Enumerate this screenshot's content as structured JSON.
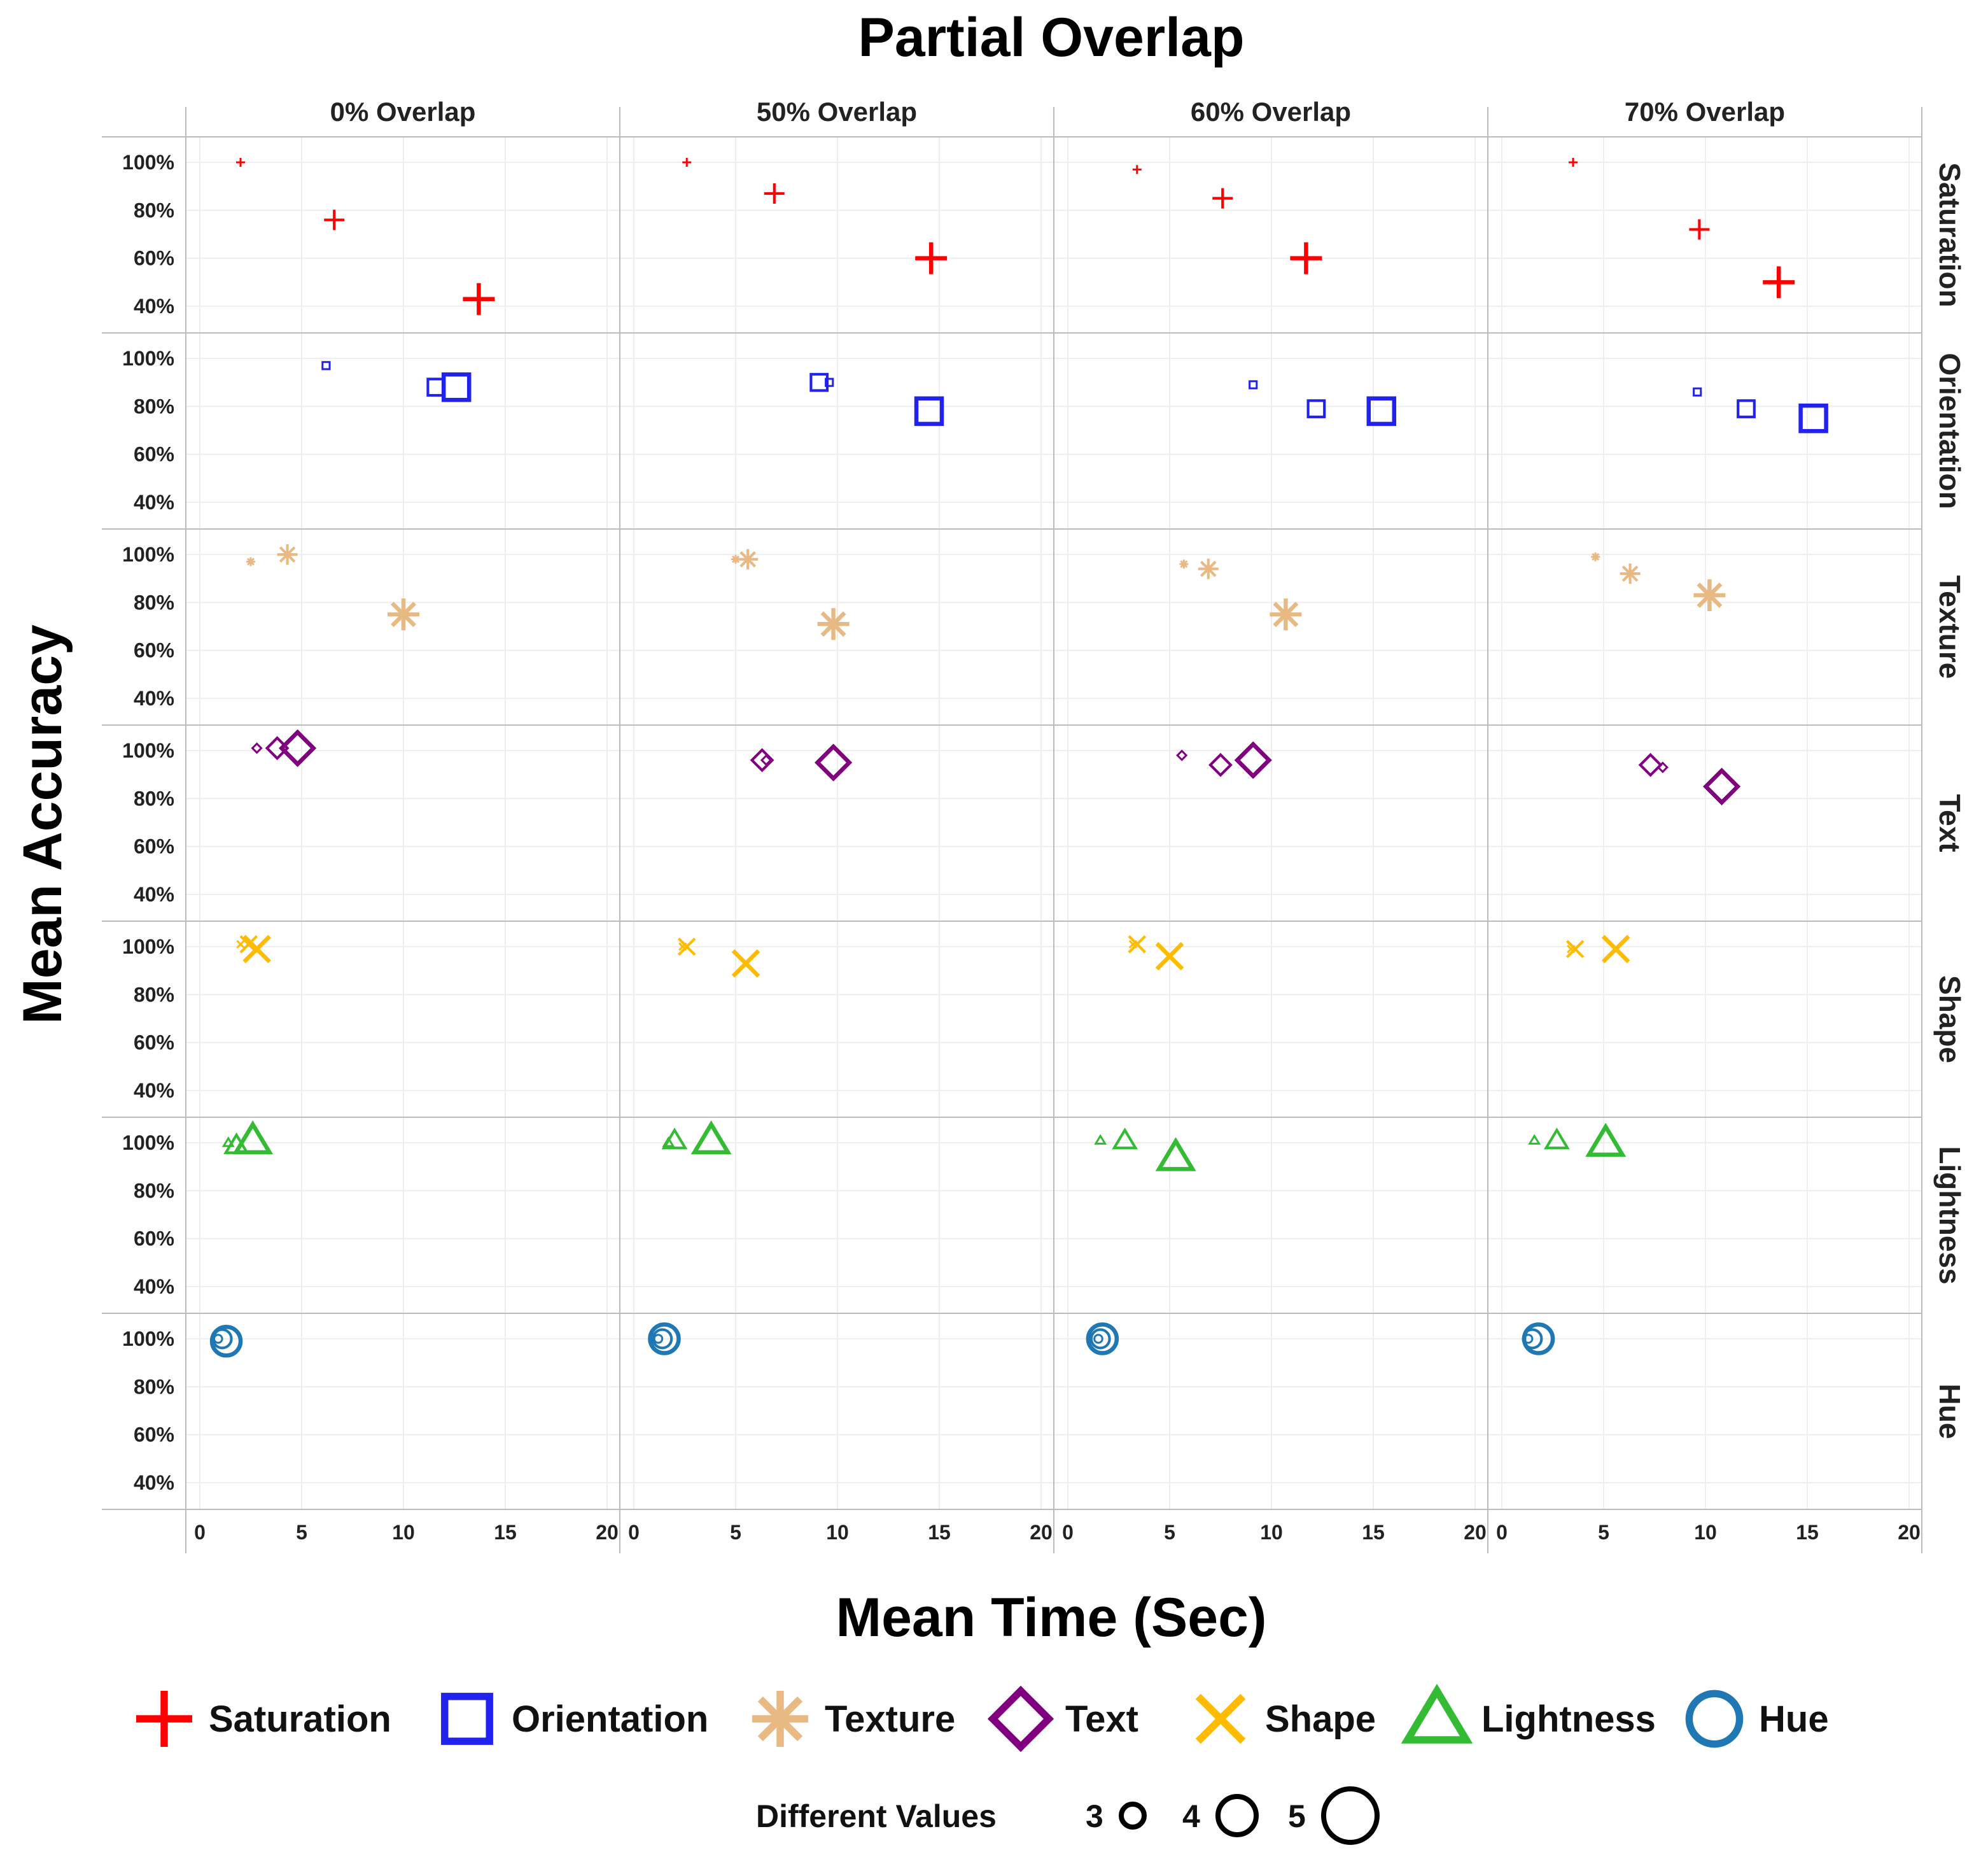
{
  "chart_data": {
    "type": "scatter",
    "title": "Partial Overlap",
    "xlabel": "Mean Time (Sec)",
    "ylabel": "Mean Accuracy",
    "xlim": [
      0,
      20
    ],
    "ylim": [
      30,
      110
    ],
    "xticks": [
      0,
      5,
      10,
      15,
      20
    ],
    "yticks": [
      100,
      80,
      60,
      40
    ],
    "ytick_labels": [
      "100%",
      "80%",
      "60%",
      "40%"
    ],
    "grid": true,
    "columns": [
      "0% Overlap",
      "50% Overlap",
      "60% Overlap",
      "70% Overlap"
    ],
    "rows": [
      "Saturation",
      "Orientation",
      "Texture",
      "Text",
      "Shape",
      "Lightness",
      "Hue"
    ],
    "colors": {
      "Saturation": "#ff0000",
      "Orientation": "#2222ee",
      "Texture": "#e8b982",
      "Text": "#800080",
      "Shape": "#ffbb00",
      "Lightness": "#33bb33",
      "Hue": "#1f77b4"
    },
    "markers": {
      "Saturation": "plus",
      "Orientation": "square",
      "Texture": "asterisk",
      "Text": "diamond",
      "Shape": "x",
      "Lightness": "triangle",
      "Hue": "circle"
    },
    "points": [
      {
        "row": "Saturation",
        "col": "0% Overlap",
        "values": [
          {
            "n": 3,
            "time": 2.0,
            "acc": 100
          },
          {
            "n": 4,
            "time": 6.6,
            "acc": 76
          },
          {
            "n": 5,
            "time": 13.7,
            "acc": 43
          }
        ]
      },
      {
        "row": "Saturation",
        "col": "50% Overlap",
        "values": [
          {
            "n": 3,
            "time": 2.6,
            "acc": 100
          },
          {
            "n": 4,
            "time": 6.9,
            "acc": 87
          },
          {
            "n": 5,
            "time": 14.6,
            "acc": 60
          }
        ]
      },
      {
        "row": "Saturation",
        "col": "60% Overlap",
        "values": [
          {
            "n": 3,
            "time": 3.4,
            "acc": 97
          },
          {
            "n": 4,
            "time": 7.6,
            "acc": 85
          },
          {
            "n": 5,
            "time": 11.7,
            "acc": 60
          }
        ]
      },
      {
        "row": "Saturation",
        "col": "70% Overlap",
        "values": [
          {
            "n": 3,
            "time": 3.5,
            "acc": 100
          },
          {
            "n": 4,
            "time": 9.7,
            "acc": 72
          },
          {
            "n": 5,
            "time": 13.6,
            "acc": 50
          }
        ]
      },
      {
        "row": "Orientation",
        "col": "0% Overlap",
        "values": [
          {
            "n": 3,
            "time": 6.2,
            "acc": 97
          },
          {
            "n": 4,
            "time": 11.6,
            "acc": 88
          },
          {
            "n": 5,
            "time": 12.6,
            "acc": 88
          }
        ]
      },
      {
        "row": "Orientation",
        "col": "50% Overlap",
        "values": [
          {
            "n": 3,
            "time": 9.6,
            "acc": 90
          },
          {
            "n": 4,
            "time": 9.1,
            "acc": 90
          },
          {
            "n": 5,
            "time": 14.5,
            "acc": 78
          }
        ]
      },
      {
        "row": "Orientation",
        "col": "60% Overlap",
        "values": [
          {
            "n": 3,
            "time": 9.1,
            "acc": 89
          },
          {
            "n": 4,
            "time": 12.2,
            "acc": 79
          },
          {
            "n": 5,
            "time": 15.4,
            "acc": 78
          }
        ]
      },
      {
        "row": "Orientation",
        "col": "70% Overlap",
        "values": [
          {
            "n": 3,
            "time": 9.6,
            "acc": 86
          },
          {
            "n": 4,
            "time": 12.0,
            "acc": 79
          },
          {
            "n": 5,
            "time": 15.3,
            "acc": 75
          }
        ]
      },
      {
        "row": "Texture",
        "col": "0% Overlap",
        "values": [
          {
            "n": 3,
            "time": 2.5,
            "acc": 97
          },
          {
            "n": 4,
            "time": 4.3,
            "acc": 100
          },
          {
            "n": 5,
            "time": 10.0,
            "acc": 75
          }
        ]
      },
      {
        "row": "Texture",
        "col": "50% Overlap",
        "values": [
          {
            "n": 3,
            "time": 5.0,
            "acc": 98
          },
          {
            "n": 4,
            "time": 5.6,
            "acc": 98
          },
          {
            "n": 5,
            "time": 9.8,
            "acc": 71
          }
        ]
      },
      {
        "row": "Texture",
        "col": "60% Overlap",
        "values": [
          {
            "n": 3,
            "time": 5.7,
            "acc": 96
          },
          {
            "n": 4,
            "time": 6.9,
            "acc": 94
          },
          {
            "n": 5,
            "time": 10.7,
            "acc": 75
          }
        ]
      },
      {
        "row": "Texture",
        "col": "70% Overlap",
        "values": [
          {
            "n": 3,
            "time": 4.6,
            "acc": 99
          },
          {
            "n": 4,
            "time": 6.3,
            "acc": 92
          },
          {
            "n": 5,
            "time": 10.2,
            "acc": 83
          }
        ]
      },
      {
        "row": "Text",
        "col": "0% Overlap",
        "values": [
          {
            "n": 3,
            "time": 2.8,
            "acc": 101
          },
          {
            "n": 4,
            "time": 3.8,
            "acc": 101
          },
          {
            "n": 5,
            "time": 4.8,
            "acc": 101
          }
        ]
      },
      {
        "row": "Text",
        "col": "50% Overlap",
        "values": [
          {
            "n": 3,
            "time": 6.5,
            "acc": 96
          },
          {
            "n": 4,
            "time": 6.3,
            "acc": 96
          },
          {
            "n": 5,
            "time": 9.8,
            "acc": 95
          }
        ]
      },
      {
        "row": "Text",
        "col": "60% Overlap",
        "values": [
          {
            "n": 3,
            "time": 5.6,
            "acc": 98
          },
          {
            "n": 4,
            "time": 7.5,
            "acc": 94
          },
          {
            "n": 5,
            "time": 9.1,
            "acc": 96
          }
        ]
      },
      {
        "row": "Text",
        "col": "70% Overlap",
        "values": [
          {
            "n": 3,
            "time": 7.9,
            "acc": 93
          },
          {
            "n": 4,
            "time": 7.3,
            "acc": 94
          },
          {
            "n": 5,
            "time": 10.8,
            "acc": 85
          }
        ]
      },
      {
        "row": "Shape",
        "col": "0% Overlap",
        "values": [
          {
            "n": 3,
            "time": 2.0,
            "acc": 101
          },
          {
            "n": 4,
            "time": 2.4,
            "acc": 101
          },
          {
            "n": 5,
            "time": 2.8,
            "acc": 99
          }
        ]
      },
      {
        "row": "Shape",
        "col": "50% Overlap",
        "values": [
          {
            "n": 3,
            "time": 2.4,
            "acc": 100
          },
          {
            "n": 4,
            "time": 2.6,
            "acc": 100
          },
          {
            "n": 5,
            "time": 5.5,
            "acc": 93
          }
        ]
      },
      {
        "row": "Shape",
        "col": "60% Overlap",
        "values": [
          {
            "n": 3,
            "time": 3.2,
            "acc": 101
          },
          {
            "n": 4,
            "time": 3.4,
            "acc": 101
          },
          {
            "n": 5,
            "time": 5.0,
            "acc": 96
          }
        ]
      },
      {
        "row": "Shape",
        "col": "70% Overlap",
        "values": [
          {
            "n": 3,
            "time": 3.4,
            "acc": 99
          },
          {
            "n": 4,
            "time": 3.6,
            "acc": 99
          },
          {
            "n": 5,
            "time": 5.6,
            "acc": 99
          }
        ]
      },
      {
        "row": "Lightness",
        "col": "0% Overlap",
        "values": [
          {
            "n": 3,
            "time": 1.4,
            "acc": 100
          },
          {
            "n": 4,
            "time": 1.8,
            "acc": 99
          },
          {
            "n": 5,
            "time": 2.6,
            "acc": 101
          }
        ]
      },
      {
        "row": "Lightness",
        "col": "50% Overlap",
        "values": [
          {
            "n": 3,
            "time": 1.7,
            "acc": 100
          },
          {
            "n": 4,
            "time": 2.0,
            "acc": 101
          },
          {
            "n": 5,
            "time": 3.8,
            "acc": 101
          }
        ]
      },
      {
        "row": "Lightness",
        "col": "60% Overlap",
        "values": [
          {
            "n": 3,
            "time": 1.6,
            "acc": 101
          },
          {
            "n": 4,
            "time": 2.8,
            "acc": 101
          },
          {
            "n": 5,
            "time": 5.3,
            "acc": 94
          }
        ]
      },
      {
        "row": "Lightness",
        "col": "70% Overlap",
        "values": [
          {
            "n": 3,
            "time": 1.6,
            "acc": 101
          },
          {
            "n": 4,
            "time": 2.7,
            "acc": 101
          },
          {
            "n": 5,
            "time": 5.1,
            "acc": 100
          }
        ]
      },
      {
        "row": "Hue",
        "col": "0% Overlap",
        "values": [
          {
            "n": 3,
            "time": 0.9,
            "acc": 100
          },
          {
            "n": 4,
            "time": 1.1,
            "acc": 100
          },
          {
            "n": 5,
            "time": 1.3,
            "acc": 99
          }
        ]
      },
      {
        "row": "Hue",
        "col": "50% Overlap",
        "values": [
          {
            "n": 3,
            "time": 1.2,
            "acc": 100
          },
          {
            "n": 4,
            "time": 1.4,
            "acc": 100
          },
          {
            "n": 5,
            "time": 1.5,
            "acc": 100
          }
        ]
      },
      {
        "row": "Hue",
        "col": "60% Overlap",
        "values": [
          {
            "n": 3,
            "time": 1.5,
            "acc": 100
          },
          {
            "n": 4,
            "time": 1.6,
            "acc": 100
          },
          {
            "n": 5,
            "time": 1.7,
            "acc": 100
          }
        ]
      },
      {
        "row": "Hue",
        "col": "70% Overlap",
        "values": [
          {
            "n": 3,
            "time": 1.3,
            "acc": 100
          },
          {
            "n": 4,
            "time": 1.5,
            "acc": 100
          },
          {
            "n": 5,
            "time": 1.8,
            "acc": 100
          }
        ]
      }
    ],
    "legend": {
      "entries": [
        "Saturation",
        "Orientation",
        "Texture",
        "Text",
        "Shape",
        "Lightness",
        "Hue"
      ],
      "size_title": "Different Values",
      "size_values": [
        "3",
        "4",
        "5"
      ],
      "placement": "bottom"
    }
  }
}
